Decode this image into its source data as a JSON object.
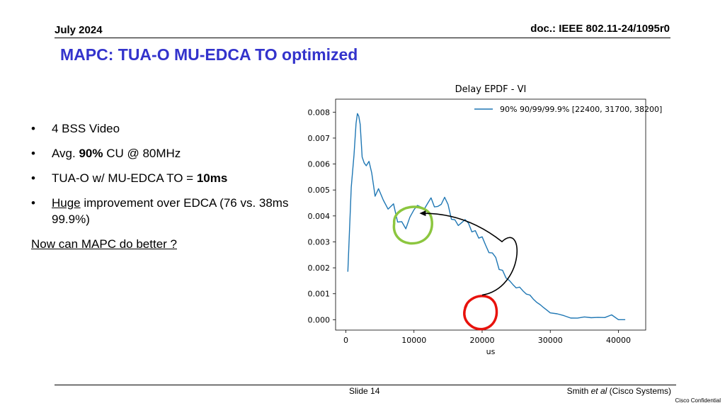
{
  "header": {
    "date": "July 2024",
    "doc_id": "doc.: IEEE 802.11-24/1095r0"
  },
  "slide": {
    "title": "MAPC: TUA-O MU-EDCA TO optimized"
  },
  "bullets": [
    {
      "text": "4 BSS Video"
    },
    {
      "pre": "Avg. ",
      "bold": "90%",
      "post": " CU @ 80MHz"
    },
    {
      "pre": "TUA-O w/ MU-EDCA TO = ",
      "bold": "10ms"
    },
    {
      "underlined": "Huge",
      "post": " improvement over EDCA (76 vs. 38ms 99.9%)"
    }
  ],
  "bullet_symbol": "•",
  "tail_text": "Now can MAPC do better ?",
  "chart_data": {
    "type": "line",
    "title": "Delay EPDF - VI",
    "xlabel": "us",
    "ylabel": "",
    "xlim": [
      -1500,
      44000
    ],
    "ylim": [
      -0.0004,
      0.0085
    ],
    "xticks": [
      0,
      10000,
      20000,
      30000,
      40000
    ],
    "xtick_labels": [
      "0",
      "10000",
      "20000",
      "30000",
      "40000"
    ],
    "yticks": [
      0,
      0.001,
      0.002,
      0.003,
      0.004,
      0.005,
      0.006,
      0.007,
      0.008
    ],
    "ytick_labels": [
      "0.000",
      "0.001",
      "0.002",
      "0.003",
      "0.004",
      "0.005",
      "0.006",
      "0.007",
      "0.008"
    ],
    "grid": false,
    "legend_position": "top-right",
    "series": [
      {
        "name": "90% 90/99/99.9% [22400, 31700, 38200]",
        "color": "#1f77b4",
        "x": [
          300,
          800,
          1200,
          1500,
          1700,
          1900,
          2100,
          2400,
          2700,
          3000,
          3400,
          3800,
          4300,
          4800,
          5500,
          6200,
          7000,
          7600,
          8200,
          8800,
          9400,
          10000,
          10500,
          11000,
          11500,
          12000,
          12500,
          13000,
          13500,
          14000,
          14500,
          15000,
          15500,
          16000,
          16500,
          17000,
          17500,
          18000,
          18500,
          19000,
          19500,
          20000,
          20500,
          21000,
          21500,
          22000,
          22500,
          23000,
          23500,
          24000,
          24500,
          25000,
          25500,
          26000,
          26500,
          27000,
          27500,
          28000,
          28500,
          29000,
          29500,
          30000,
          31000,
          32000,
          33000,
          34000,
          35000,
          36000,
          37000,
          38000,
          39000,
          40000,
          41000
        ],
        "y": [
          0.002,
          0.0048,
          0.0068,
          0.0075,
          0.0081,
          0.0079,
          0.0074,
          0.0066,
          0.0062,
          0.0059,
          0.0057,
          0.0054,
          0.005,
          0.0047,
          0.0044,
          0.0043,
          0.0042,
          0.0038,
          0.0037,
          0.0036,
          0.0038,
          0.0042,
          0.0043,
          0.0044,
          0.0045,
          0.0046,
          0.0047,
          0.0047,
          0.0046,
          0.0045,
          0.0044,
          0.0043,
          0.004,
          0.0039,
          0.0038,
          0.0037,
          0.0036,
          0.0035,
          0.0034,
          0.0033,
          0.0031,
          0.003,
          0.0029,
          0.0027,
          0.0025,
          0.0023,
          0.002,
          0.0019,
          0.0017,
          0.0016,
          0.0014,
          0.0013,
          0.0012,
          0.0011,
          0.001,
          0.0009,
          0.0008,
          0.0007,
          0.0006,
          0.0005,
          0.0004,
          0.0003,
          0.0002,
          0.0002,
          0.0001,
          0.0001,
          0.0001,
          0.0001,
          0.0001,
          0.0001,
          0.0002,
          0.0,
          0.0
        ]
      }
    ],
    "annotations": [
      {
        "kind": "circle",
        "color": "#8cc63f",
        "center": [
          10000,
          0.0036
        ]
      },
      {
        "kind": "circle",
        "color": "#e8120c",
        "center": [
          20000,
          0.0003
        ]
      },
      {
        "kind": "arrow",
        "color": "#000000",
        "from": [
          20000,
          0.00095
        ],
        "to": [
          10800,
          0.0041
        ]
      }
    ]
  },
  "footer": {
    "slide_label": "Slide 14",
    "author_pre": "Smith ",
    "author_em": "et al",
    "author_post": " (Cisco Systems)",
    "confidential": "Cisco Confidential"
  }
}
